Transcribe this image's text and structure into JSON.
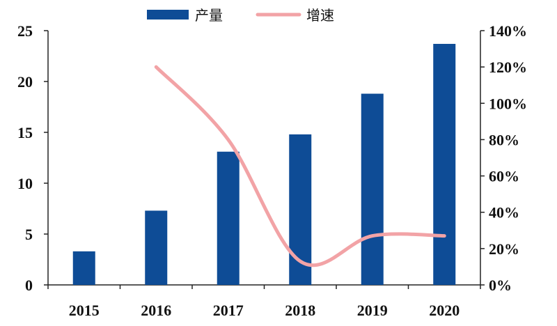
{
  "chart_data": {
    "type": "bar+line",
    "categories": [
      "2015",
      "2016",
      "2017",
      "2018",
      "2019",
      "2020"
    ],
    "series": [
      {
        "name": "产量",
        "type": "bar",
        "axis": "left",
        "color": "#0e4c96",
        "values": [
          3.3,
          7.3,
          13.1,
          14.8,
          18.8,
          23.7
        ]
      },
      {
        "name": "增速",
        "type": "line",
        "axis": "right",
        "color": "#f2a3a6",
        "values": [
          null,
          1.2,
          0.8,
          0.13,
          0.27,
          0.27
        ]
      }
    ],
    "left_axis": {
      "ylim": [
        0,
        25
      ],
      "ticks": [
        "0",
        "5",
        "10",
        "15",
        "20",
        "25"
      ]
    },
    "right_axis": {
      "ylim": [
        0,
        1.4
      ],
      "ticks": [
        "0%",
        "20%",
        "40%",
        "60%",
        "80%",
        "100%",
        "120%",
        "140%"
      ]
    },
    "legend": "top",
    "grid": false
  }
}
